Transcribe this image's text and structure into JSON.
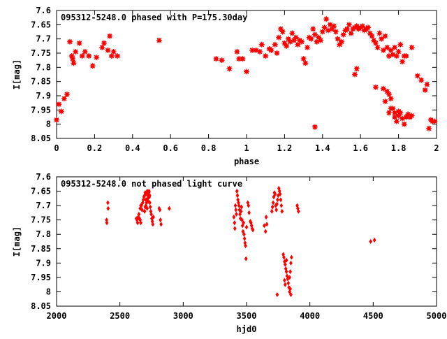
{
  "chart_data": [
    {
      "type": "scatter",
      "title": "095312-5248.0 phased with P=175.30day",
      "xlabel": "phase",
      "ylabel": "I[mag]",
      "xlim": [
        0,
        2
      ],
      "ylim": [
        8.05,
        7.6
      ],
      "y_inverted": true,
      "xticks": [
        0,
        0.2,
        0.4,
        0.6,
        0.8,
        1,
        1.2,
        1.4,
        1.6,
        1.8,
        2
      ],
      "xtick_labels": [
        "0",
        "0.2",
        "0.4",
        "0.6",
        "0.8",
        "1",
        "1.2",
        "1.4",
        "1.6",
        "1.8",
        "2"
      ],
      "yticks": [
        7.6,
        7.65,
        7.7,
        7.75,
        7.8,
        7.85,
        7.9,
        7.95,
        8,
        8.05
      ],
      "ytick_labels": [
        "7.6",
        "7.65",
        "7.7",
        "7.75",
        "7.8",
        "7.85",
        "7.9",
        "7.95",
        "8",
        "8.05"
      ],
      "grid": false,
      "marker_color": "#ff0000",
      "marker": "star",
      "points": [
        [
          0.0,
          7.985
        ],
        [
          0.012,
          7.93
        ],
        [
          0.025,
          7.955
        ],
        [
          0.04,
          7.91
        ],
        [
          0.055,
          7.895
        ],
        [
          0.07,
          7.71
        ],
        [
          0.08,
          7.76
        ],
        [
          0.085,
          7.77
        ],
        [
          0.09,
          7.785
        ],
        [
          0.1,
          7.745
        ],
        [
          0.12,
          7.715
        ],
        [
          0.135,
          7.76
        ],
        [
          0.15,
          7.745
        ],
        [
          0.17,
          7.76
        ],
        [
          0.19,
          7.795
        ],
        [
          0.21,
          7.765
        ],
        [
          0.24,
          7.73
        ],
        [
          0.25,
          7.715
        ],
        [
          0.27,
          7.74
        ],
        [
          0.28,
          7.69
        ],
        [
          0.29,
          7.76
        ],
        [
          0.3,
          7.745
        ],
        [
          0.32,
          7.76
        ],
        [
          0.54,
          7.705
        ],
        [
          0.84,
          7.77
        ],
        [
          0.87,
          7.775
        ],
        [
          0.91,
          7.805
        ],
        [
          0.95,
          7.745
        ],
        [
          0.96,
          7.77
        ],
        [
          0.98,
          7.77
        ],
        [
          1.0,
          7.815
        ],
        [
          1.03,
          7.74
        ],
        [
          1.05,
          7.74
        ],
        [
          1.07,
          7.745
        ],
        [
          1.08,
          7.72
        ],
        [
          1.1,
          7.76
        ],
        [
          1.12,
          7.735
        ],
        [
          1.13,
          7.74
        ],
        [
          1.15,
          7.72
        ],
        [
          1.16,
          7.75
        ],
        [
          1.17,
          7.695
        ],
        [
          1.18,
          7.665
        ],
        [
          1.19,
          7.675
        ],
        [
          1.2,
          7.715
        ],
        [
          1.21,
          7.725
        ],
        [
          1.22,
          7.7
        ],
        [
          1.23,
          7.71
        ],
        [
          1.24,
          7.68
        ],
        [
          1.25,
          7.705
        ],
        [
          1.26,
          7.695
        ],
        [
          1.27,
          7.72
        ],
        [
          1.28,
          7.705
        ],
        [
          1.29,
          7.71
        ],
        [
          1.3,
          7.77
        ],
        [
          1.31,
          7.785
        ],
        [
          1.32,
          7.73
        ],
        [
          1.33,
          7.695
        ],
        [
          1.34,
          7.7
        ],
        [
          1.35,
          7.665
        ],
        [
          1.36,
          7.685
        ],
        [
          1.37,
          7.71
        ],
        [
          1.38,
          7.695
        ],
        [
          1.39,
          7.705
        ],
        [
          1.4,
          7.675
        ],
        [
          1.41,
          7.66
        ],
        [
          1.42,
          7.63
        ],
        [
          1.43,
          7.67
        ],
        [
          1.44,
          7.65
        ],
        [
          1.45,
          7.665
        ],
        [
          1.46,
          7.655
        ],
        [
          1.47,
          7.675
        ],
        [
          1.48,
          7.7
        ],
        [
          1.49,
          7.72
        ],
        [
          1.5,
          7.71
        ],
        [
          1.51,
          7.685
        ],
        [
          1.52,
          7.67
        ],
        [
          1.53,
          7.665
        ],
        [
          1.54,
          7.65
        ],
        [
          1.55,
          7.68
        ],
        [
          1.56,
          7.665
        ],
        [
          1.57,
          7.66
        ],
        [
          1.58,
          7.655
        ],
        [
          1.59,
          7.665
        ],
        [
          1.6,
          7.66
        ],
        [
          1.61,
          7.655
        ],
        [
          1.62,
          7.67
        ],
        [
          1.63,
          7.665
        ],
        [
          1.64,
          7.66
        ],
        [
          1.65,
          7.68
        ],
        [
          1.66,
          7.69
        ],
        [
          1.67,
          7.705
        ],
        [
          1.68,
          7.715
        ],
        [
          1.69,
          7.73
        ],
        [
          1.7,
          7.68
        ],
        [
          1.71,
          7.7
        ],
        [
          1.72,
          7.74
        ],
        [
          1.73,
          7.69
        ],
        [
          1.74,
          7.73
        ],
        [
          1.75,
          7.76
        ],
        [
          1.76,
          7.74
        ],
        [
          1.77,
          7.755
        ],
        [
          1.78,
          7.73
        ],
        [
          1.79,
          7.76
        ],
        [
          1.8,
          7.745
        ],
        [
          1.81,
          7.72
        ],
        [
          1.82,
          7.78
        ],
        [
          1.83,
          7.76
        ],
        [
          1.84,
          7.76
        ],
        [
          1.87,
          7.73
        ],
        [
          1.9,
          7.83
        ],
        [
          1.92,
          7.845
        ],
        [
          1.94,
          7.88
        ],
        [
          1.95,
          7.86
        ],
        [
          1.36,
          8.01
        ],
        [
          1.57,
          7.825
        ],
        [
          1.58,
          7.805
        ],
        [
          1.68,
          7.87
        ],
        [
          1.72,
          7.875
        ],
        [
          1.73,
          7.92
        ],
        [
          1.74,
          7.885
        ],
        [
          1.75,
          7.895
        ],
        [
          1.76,
          7.91
        ],
        [
          1.77,
          7.945
        ],
        [
          1.78,
          7.96
        ],
        [
          1.79,
          7.99
        ],
        [
          1.8,
          7.97
        ],
        [
          1.81,
          7.96
        ],
        [
          1.82,
          7.98
        ],
        [
          1.83,
          8.0
        ],
        [
          1.84,
          7.975
        ],
        [
          1.85,
          7.965
        ],
        [
          1.86,
          7.975
        ],
        [
          1.87,
          7.97
        ],
        [
          1.96,
          8.015
        ],
        [
          1.97,
          7.985
        ],
        [
          1.98,
          7.99
        ],
        [
          1.99,
          7.99
        ],
        [
          1.75,
          7.96
        ],
        [
          1.76,
          7.945
        ],
        [
          1.78,
          7.975
        ],
        [
          1.8,
          7.955
        ]
      ]
    },
    {
      "type": "scatter",
      "title": "095312-5248.0 not phased light curve",
      "xlabel": "hjd0",
      "ylabel": "I[mag]",
      "xlim": [
        2000,
        5000
      ],
      "ylim": [
        8.05,
        7.6
      ],
      "y_inverted": true,
      "xticks": [
        2000,
        2500,
        3000,
        3500,
        4000,
        4500,
        5000
      ],
      "xtick_labels": [
        "2000",
        "2500",
        "3000",
        "3500",
        "4000",
        "4500",
        "5000"
      ],
      "yticks": [
        7.6,
        7.65,
        7.7,
        7.75,
        7.8,
        7.85,
        7.9,
        7.95,
        8,
        8.05
      ],
      "ytick_labels": [
        "7.6",
        "7.65",
        "7.7",
        "7.75",
        "7.8",
        "7.85",
        "7.9",
        "7.95",
        "8",
        "8.05"
      ],
      "grid": false,
      "marker_color": "#ff0000",
      "marker": "diamond",
      "points": [
        [
          2395,
          7.75
        ],
        [
          2397,
          7.76
        ],
        [
          2405,
          7.69
        ],
        [
          2407,
          7.71
        ],
        [
          2630,
          7.745
        ],
        [
          2635,
          7.75
        ],
        [
          2640,
          7.76
        ],
        [
          2645,
          7.74
        ],
        [
          2650,
          7.73
        ],
        [
          2655,
          7.745
        ],
        [
          2660,
          7.75
        ],
        [
          2665,
          7.76
        ],
        [
          2670,
          7.7
        ],
        [
          2675,
          7.715
        ],
        [
          2680,
          7.69
        ],
        [
          2685,
          7.68
        ],
        [
          2690,
          7.67
        ],
        [
          2695,
          7.665
        ],
        [
          2700,
          7.655
        ],
        [
          2705,
          7.7
        ],
        [
          2708,
          7.68
        ],
        [
          2712,
          7.66
        ],
        [
          2716,
          7.65
        ],
        [
          2720,
          7.665
        ],
        [
          2724,
          7.685
        ],
        [
          2728,
          7.655
        ],
        [
          2732,
          7.67
        ],
        [
          2736,
          7.69
        ],
        [
          2740,
          7.705
        ],
        [
          2744,
          7.72
        ],
        [
          2748,
          7.73
        ],
        [
          2752,
          7.745
        ],
        [
          2756,
          7.755
        ],
        [
          2760,
          7.765
        ],
        [
          2764,
          7.74
        ],
        [
          2695,
          7.72
        ],
        [
          2700,
          7.705
        ],
        [
          2705,
          7.68
        ],
        [
          2710,
          7.69
        ],
        [
          2715,
          7.71
        ],
        [
          2720,
          7.675
        ],
        [
          2725,
          7.66
        ],
        [
          2730,
          7.65
        ],
        [
          2735,
          7.665
        ],
        [
          2660,
          7.71
        ],
        [
          2665,
          7.7
        ],
        [
          2810,
          7.71
        ],
        [
          2815,
          7.715
        ],
        [
          2820,
          7.75
        ],
        [
          2825,
          7.765
        ],
        [
          2890,
          7.71
        ],
        [
          3400,
          7.74
        ],
        [
          3405,
          7.76
        ],
        [
          3408,
          7.78
        ],
        [
          3412,
          7.7
        ],
        [
          3416,
          7.715
        ],
        [
          3420,
          7.73
        ],
        [
          3424,
          7.65
        ],
        [
          3428,
          7.665
        ],
        [
          3432,
          7.68
        ],
        [
          3436,
          7.69
        ],
        [
          3440,
          7.7
        ],
        [
          3444,
          7.715
        ],
        [
          3448,
          7.73
        ],
        [
          3452,
          7.745
        ],
        [
          3456,
          7.72
        ],
        [
          3460,
          7.705
        ],
        [
          3464,
          7.75
        ],
        [
          3468,
          7.77
        ],
        [
          3472,
          7.79
        ],
        [
          3476,
          7.76
        ],
        [
          3480,
          7.8
        ],
        [
          3484,
          7.815
        ],
        [
          3488,
          7.83
        ],
        [
          3492,
          7.84
        ],
        [
          3496,
          7.885
        ],
        [
          3500,
          7.775
        ],
        [
          3510,
          7.69
        ],
        [
          3515,
          7.7
        ],
        [
          3520,
          7.725
        ],
        [
          3530,
          7.755
        ],
        [
          3535,
          7.76
        ],
        [
          3540,
          7.77
        ],
        [
          3545,
          7.78
        ],
        [
          3550,
          7.785
        ],
        [
          3640,
          7.77
        ],
        [
          3650,
          7.79
        ],
        [
          3655,
          7.74
        ],
        [
          3660,
          7.765
        ],
        [
          3700,
          7.72
        ],
        [
          3705,
          7.705
        ],
        [
          3710,
          7.69
        ],
        [
          3715,
          7.67
        ],
        [
          3720,
          7.655
        ],
        [
          3725,
          7.66
        ],
        [
          3730,
          7.7
        ],
        [
          3735,
          7.715
        ],
        [
          3740,
          7.695
        ],
        [
          3745,
          7.68
        ],
        [
          3750,
          7.665
        ],
        [
          3755,
          7.64
        ],
        [
          3760,
          7.65
        ],
        [
          3765,
          7.66
        ],
        [
          3770,
          7.68
        ],
        [
          3775,
          7.7
        ],
        [
          3780,
          7.72
        ],
        [
          3742,
          8.01
        ],
        [
          3790,
          7.87
        ],
        [
          3795,
          7.88
        ],
        [
          3800,
          7.895
        ],
        [
          3805,
          7.905
        ],
        [
          3810,
          7.92
        ],
        [
          3815,
          7.93
        ],
        [
          3820,
          7.945
        ],
        [
          3825,
          7.955
        ],
        [
          3830,
          7.97
        ],
        [
          3835,
          7.985
        ],
        [
          3840,
          8.0
        ],
        [
          3845,
          7.99
        ],
        [
          3850,
          8.01
        ],
        [
          3800,
          7.96
        ],
        [
          3805,
          7.975
        ],
        [
          3815,
          7.89
        ],
        [
          3840,
          7.95
        ],
        [
          3845,
          7.93
        ],
        [
          3850,
          7.9
        ],
        [
          3855,
          7.88
        ],
        [
          3900,
          7.7
        ],
        [
          3905,
          7.71
        ],
        [
          3910,
          7.72
        ],
        [
          4480,
          7.825
        ],
        [
          4510,
          7.82
        ]
      ]
    }
  ]
}
